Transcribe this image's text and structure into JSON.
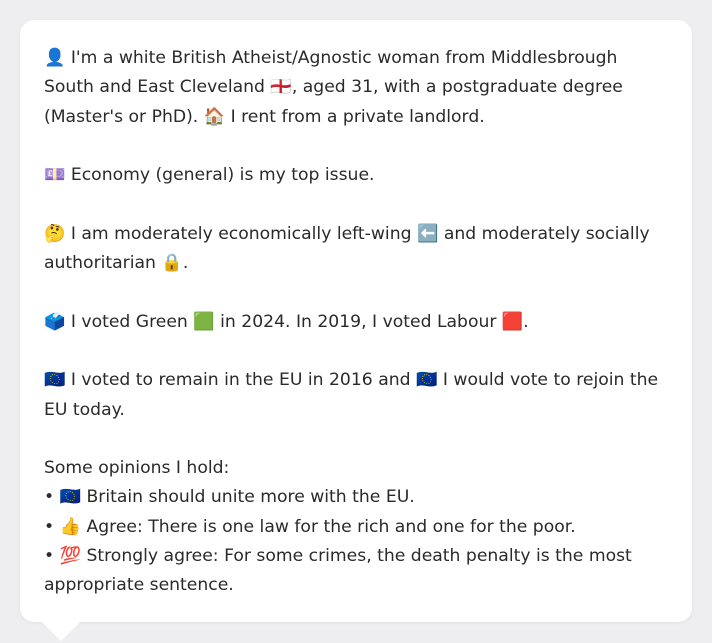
{
  "profile": {
    "p1": "👤 I'm a white British Atheist/Agnostic woman from Middlesbrough South and East Cleveland 🏴󠁧󠁢󠁥󠁮󠁧󠁿, aged 31, with a postgraduate degree (Master's or PhD). 🏠 I rent from a private landlord.",
    "p2": "💷 Economy (general) is my top issue.",
    "p3": "🤔 I am moderately economically left-wing ⬅️ and moderately socially authoritarian 🔒.",
    "p4": "🗳️ I voted Green 🟩 in 2024. In 2019, I voted Labour 🟥.",
    "p5": "🇪🇺 I voted to remain in the EU in 2016 and 🇪🇺 I would vote to rejoin the EU today.",
    "opinions_heading": "Some opinions I hold:",
    "opinions": [
      "• 🇪🇺 Britain should unite more with the EU.",
      "• 👍 Agree: There is one law for the rich and one for the poor.",
      "• 💯 Strongly agree: For some crimes, the death penalty is the most appropriate sentence."
    ]
  },
  "colors": {
    "background": "#eeeef0",
    "card": "#ffffff",
    "text": "#2a2a2a"
  }
}
